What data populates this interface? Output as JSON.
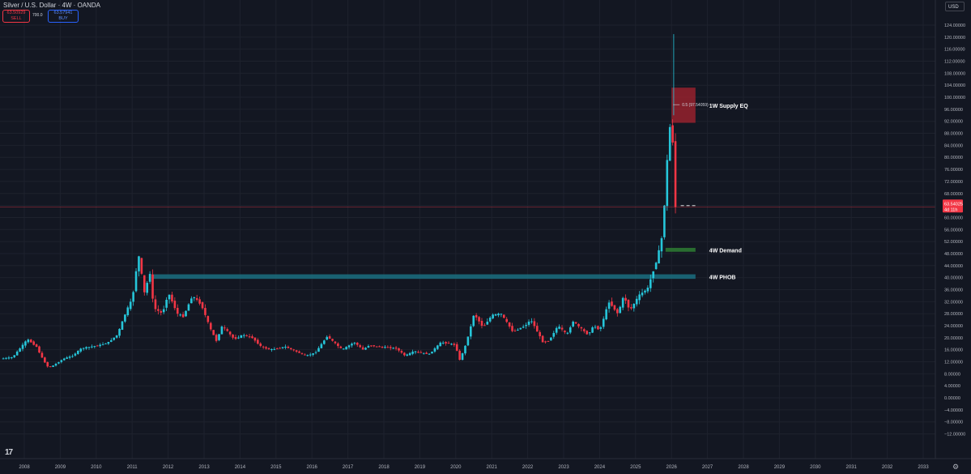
{
  "header": {
    "title": "Silver / U.S. Dollar · 4W · OANDA",
    "sell_price": "63.50929",
    "sell_label": "SELL",
    "spread": "700.0",
    "buy_price": "63.57941",
    "buy_label": "BUY",
    "currency": "USD"
  },
  "colors": {
    "background": "#131722",
    "up": "#26c6da",
    "down": "#f23645",
    "grid": "#1e222d",
    "text": "#b2b5be",
    "phob_zone": "#1b6f80",
    "demand_zone": "#2e7d32",
    "supply_zone": "#a8232f"
  },
  "icons": {
    "logo": "tradingview-logo-icon",
    "settings": "gear-icon"
  },
  "chart_data": {
    "type": "candlestick",
    "title": "Silver / U.S. Dollar · 4W · OANDA",
    "ylim": [
      -12,
      124
    ],
    "y_ticks": [
      "124.00000",
      "120.00000",
      "116.00000",
      "112.00000",
      "108.00000",
      "104.00000",
      "100.00000",
      "96.00000",
      "92.00000",
      "88.00000",
      "84.00000",
      "80.00000",
      "76.00000",
      "72.00000",
      "68.00000",
      "64.00000",
      "60.00000",
      "56.00000",
      "52.00000",
      "48.00000",
      "44.00000",
      "40.00000",
      "36.00000",
      "32.00000",
      "28.00000",
      "24.00000",
      "20.00000",
      "16.00000",
      "12.00000",
      "8.00000",
      "4.00000",
      "0.00000",
      "−4.00000",
      "−8.00000",
      "−12.00000"
    ],
    "x_ticks": [
      "2008",
      "2009",
      "2010",
      "2011",
      "2012",
      "2013",
      "2014",
      "2015",
      "2016",
      "2017",
      "2018",
      "2019",
      "2020",
      "2021",
      "2022",
      "2023",
      "2024",
      "2025",
      "2026",
      "2027",
      "2028",
      "2029",
      "2030",
      "2031",
      "2032",
      "2033"
    ],
    "current_price": "63.54025",
    "countdown": "4d 11h",
    "fib_label": "0.5 (97.54059)",
    "zones": [
      {
        "label": "1W Supply EQ",
        "from_date": "2026-01",
        "to_date": "2026-09",
        "low": 91.5,
        "high": 103.2,
        "color": "#a8232f"
      },
      {
        "label": "4W Demand",
        "from_date": "2025-11",
        "to_date": "2026-09",
        "low": 48.6,
        "high": 49.9,
        "color": "#2e7d32"
      },
      {
        "label": "4W PHOB",
        "from_date": "2011-08",
        "to_date": "2026-09",
        "low": 39.6,
        "high": 41.1,
        "color": "#1b6f80"
      }
    ],
    "price_path": [
      [
        "2007-06",
        13
      ],
      [
        "2007-10",
        13.5
      ],
      [
        "2008-03",
        19.5
      ],
      [
        "2008-06",
        17
      ],
      [
        "2008-08",
        13
      ],
      [
        "2008-10",
        10
      ],
      [
        "2008-12",
        11
      ],
      [
        "2009-03",
        13
      ],
      [
        "2009-06",
        14
      ],
      [
        "2009-09",
        16.5
      ],
      [
        "2009-12",
        17
      ],
      [
        "2010-03",
        17.5
      ],
      [
        "2010-06",
        18.5
      ],
      [
        "2010-09",
        21
      ],
      [
        "2010-12",
        29
      ],
      [
        "2011-02",
        33
      ],
      [
        "2011-04",
        48
      ],
      [
        "2011-06",
        35
      ],
      [
        "2011-08",
        42
      ],
      [
        "2011-09",
        30
      ],
      [
        "2011-12",
        28
      ],
      [
        "2012-02",
        35
      ],
      [
        "2012-05",
        28
      ],
      [
        "2012-07",
        27
      ],
      [
        "2012-10",
        34
      ],
      [
        "2013-01",
        31
      ],
      [
        "2013-04",
        23
      ],
      [
        "2013-06",
        19
      ],
      [
        "2013-08",
        24
      ],
      [
        "2013-12",
        19.5
      ],
      [
        "2014-03",
        21
      ],
      [
        "2014-06",
        20
      ],
      [
        "2014-09",
        17
      ],
      [
        "2014-12",
        16
      ],
      [
        "2015-05",
        17
      ],
      [
        "2015-12",
        14
      ],
      [
        "2016-03",
        15
      ],
      [
        "2016-07",
        20.5
      ],
      [
        "2016-12",
        16
      ],
      [
        "2017-04",
        18.5
      ],
      [
        "2017-07",
        16
      ],
      [
        "2017-09",
        17.5
      ],
      [
        "2017-12",
        17
      ],
      [
        "2018-06",
        16.5
      ],
      [
        "2018-09",
        14
      ],
      [
        "2018-12",
        15.5
      ],
      [
        "2019-05",
        14.5
      ],
      [
        "2019-09",
        18.5
      ],
      [
        "2019-12",
        18
      ],
      [
        "2020-02",
        17.5
      ],
      [
        "2020-03",
        12
      ],
      [
        "2020-05",
        17
      ],
      [
        "2020-07",
        24
      ],
      [
        "2020-08",
        28
      ],
      [
        "2020-11",
        23.5
      ],
      [
        "2021-02",
        27.5
      ],
      [
        "2021-05",
        28
      ],
      [
        "2021-09",
        22
      ],
      [
        "2022-01",
        24
      ],
      [
        "2022-03",
        26
      ],
      [
        "2022-07",
        18.5
      ],
      [
        "2022-09",
        19
      ],
      [
        "2022-12",
        24
      ],
      [
        "2023-03",
        21
      ],
      [
        "2023-05",
        25.5
      ],
      [
        "2023-10",
        21
      ],
      [
        "2023-12",
        24
      ],
      [
        "2024-02",
        22.5
      ],
      [
        "2024-05",
        32
      ],
      [
        "2024-08",
        28
      ],
      [
        "2024-10",
        34
      ],
      [
        "2024-12",
        29
      ],
      [
        "2025-03",
        34
      ],
      [
        "2025-06",
        36.5
      ],
      [
        "2025-09",
        46
      ],
      [
        "2025-10",
        50
      ],
      [
        "2025-11",
        55
      ],
      [
        "2025-12",
        72
      ],
      [
        "2026-01",
        87
      ],
      [
        "2026-02",
        95
      ],
      [
        "2026-03",
        63.5
      ]
    ]
  }
}
